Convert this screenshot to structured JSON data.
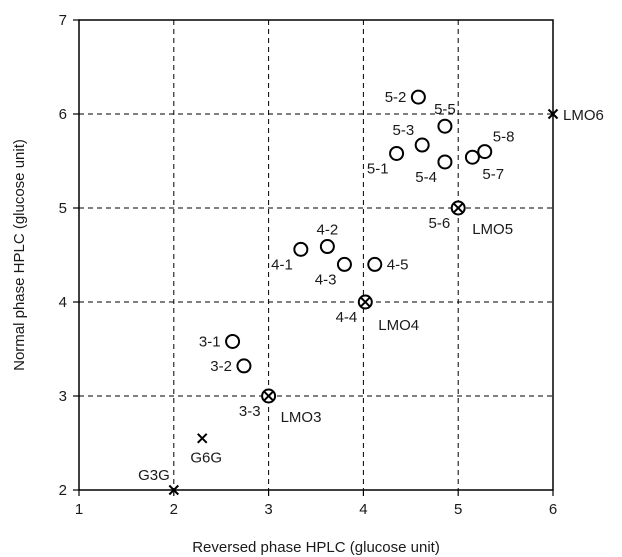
{
  "chart_data": {
    "type": "scatter",
    "xlabel": "Reversed phase HPLC (glucose unit)",
    "ylabel": "Normal phase HPLC (glucose unit)",
    "xlim": [
      1,
      6
    ],
    "ylim": [
      2,
      7
    ],
    "x_ticks": [
      "1",
      "2",
      "3",
      "4",
      "5",
      "6"
    ],
    "y_ticks": [
      "2",
      "3",
      "4",
      "5",
      "6",
      "7"
    ],
    "grid": true,
    "points": [
      {
        "label": "3-1",
        "x": 2.62,
        "y": 3.58,
        "marker": "circle",
        "label_pos": "left"
      },
      {
        "label": "3-2",
        "x": 2.74,
        "y": 3.32,
        "marker": "circle",
        "label_pos": "left"
      },
      {
        "label": "3-3",
        "x": 3.0,
        "y": 3.0,
        "marker": "circle-x",
        "label_pos": "below-left"
      },
      {
        "label": "4-1",
        "x": 3.34,
        "y": 4.56,
        "marker": "circle",
        "label_pos": "below-left"
      },
      {
        "label": "4-2",
        "x": 3.62,
        "y": 4.59,
        "marker": "circle",
        "label_pos": "above"
      },
      {
        "label": "4-3",
        "x": 3.8,
        "y": 4.4,
        "marker": "circle",
        "label_pos": "below-left"
      },
      {
        "label": "4-5",
        "x": 4.12,
        "y": 4.4,
        "marker": "circle",
        "label_pos": "right"
      },
      {
        "label": "4-4",
        "x": 4.02,
        "y": 4.0,
        "marker": "circle-x",
        "label_pos": "below-left"
      },
      {
        "label": "5-1",
        "x": 4.35,
        "y": 5.58,
        "marker": "circle",
        "label_pos": "below-left"
      },
      {
        "label": "5-3",
        "x": 4.62,
        "y": 5.67,
        "marker": "circle",
        "label_pos": "above-left"
      },
      {
        "label": "5-2",
        "x": 4.58,
        "y": 6.18,
        "marker": "circle",
        "label_pos": "left"
      },
      {
        "label": "5-5",
        "x": 4.86,
        "y": 5.87,
        "marker": "circle",
        "label_pos": "above"
      },
      {
        "label": "5-4",
        "x": 4.86,
        "y": 5.49,
        "marker": "circle",
        "label_pos": "below-left"
      },
      {
        "label": "5-7",
        "x": 5.15,
        "y": 5.54,
        "marker": "circle",
        "label_pos": "below-right"
      },
      {
        "label": "5-8",
        "x": 5.28,
        "y": 5.6,
        "marker": "circle",
        "label_pos": "above-right"
      },
      {
        "label": "5-6",
        "x": 5.0,
        "y": 5.0,
        "marker": "circle-x",
        "label_pos": "below-left"
      },
      {
        "label": "G3G",
        "x": 2.0,
        "y": 2.0,
        "marker": "x",
        "label_pos": "above-left"
      },
      {
        "label": "G6G",
        "x": 2.3,
        "y": 2.55,
        "marker": "x",
        "label_pos": "below"
      },
      {
        "label": "LMO3",
        "x": 3.0,
        "y": 3.0,
        "marker": "none",
        "label_pos": "below-right"
      },
      {
        "label": "LMO4",
        "x": 4.02,
        "y": 4.0,
        "marker": "none",
        "label_pos": "below-right"
      },
      {
        "label": "LMO5",
        "x": 5.0,
        "y": 5.0,
        "marker": "none",
        "label_pos": "below-right"
      },
      {
        "label": "LMO6",
        "x": 6.0,
        "y": 6.0,
        "marker": "x",
        "label_pos": "right"
      }
    ]
  }
}
